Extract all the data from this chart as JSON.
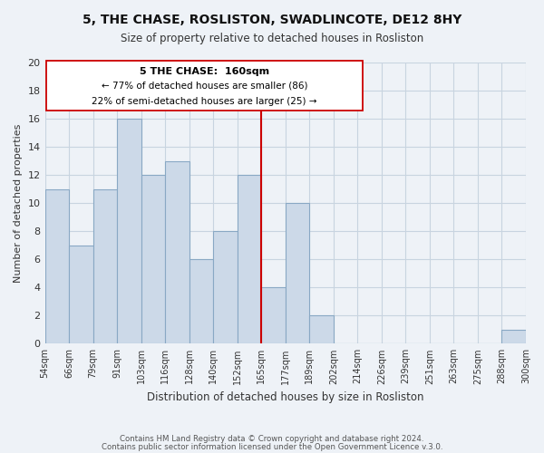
{
  "title": "5, THE CHASE, ROSLISTON, SWADLINCOTE, DE12 8HY",
  "subtitle": "Size of property relative to detached houses in Rosliston",
  "xlabel": "Distribution of detached houses by size in Rosliston",
  "ylabel": "Number of detached properties",
  "footer_lines": [
    "Contains HM Land Registry data © Crown copyright and database right 2024.",
    "Contains public sector information licensed under the Open Government Licence v.3.0."
  ],
  "bin_edges": [
    0,
    1,
    2,
    3,
    4,
    5,
    6,
    7,
    8,
    9,
    10,
    11,
    12,
    13,
    14,
    15,
    16,
    17,
    18,
    19,
    20
  ],
  "bin_labels": [
    "54sqm",
    "66sqm",
    "79sqm",
    "91sqm",
    "103sqm",
    "116sqm",
    "128sqm",
    "140sqm",
    "152sqm",
    "165sqm",
    "177sqm",
    "189sqm",
    "202sqm",
    "214sqm",
    "226sqm",
    "239sqm",
    "251sqm",
    "263sqm",
    "275sqm",
    "288sqm",
    "300sqm"
  ],
  "bar_heights": [
    11,
    7,
    11,
    16,
    12,
    13,
    6,
    8,
    12,
    4,
    10,
    2,
    0,
    0,
    0,
    0,
    0,
    0,
    0,
    1
  ],
  "bar_color": "#ccd9e8",
  "bar_edge_color": "#89a8c4",
  "marker_x": 9,
  "marker_label": "5 THE CHASE:  160sqm",
  "marker_color": "#cc0000",
  "annotation_line1": "← 77% of detached houses are smaller (86)",
  "annotation_line2": "22% of semi-detached houses are larger (25) →",
  "ylim": [
    0,
    20
  ],
  "xlim": [
    0,
    20
  ],
  "yticks": [
    0,
    2,
    4,
    6,
    8,
    10,
    12,
    14,
    16,
    18,
    20
  ],
  "grid_color": "#c8d4e0",
  "background_color": "#eef2f7",
  "title_fontsize": 10,
  "subtitle_fontsize": 8.5
}
